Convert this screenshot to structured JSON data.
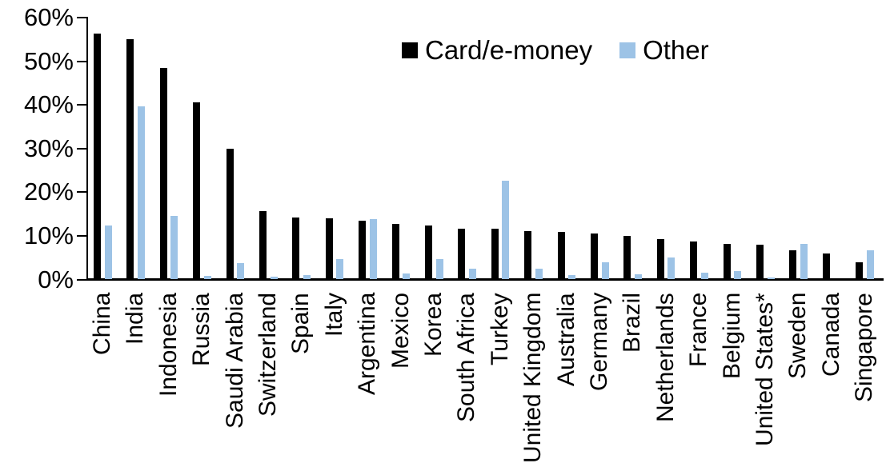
{
  "chart_data": {
    "type": "bar",
    "title": "",
    "xlabel": "",
    "ylabel": "",
    "ylim": [
      0,
      60
    ],
    "grid": false,
    "legend_position": "top-center",
    "background_color": "#ffffff",
    "axis_color": "#000000",
    "y_ticks": [
      {
        "value": 0,
        "label": "0%"
      },
      {
        "value": 10,
        "label": "10%"
      },
      {
        "value": 20,
        "label": "20%"
      },
      {
        "value": 30,
        "label": "30%"
      },
      {
        "value": 40,
        "label": "40%"
      },
      {
        "value": 50,
        "label": "50%"
      },
      {
        "value": 60,
        "label": "60%"
      }
    ],
    "categories": [
      "China",
      "India",
      "Indonesia",
      "Russia",
      "Saudi Arabia",
      "Switzerland",
      "Spain",
      "Italy",
      "Argentina",
      "Mexico",
      "Korea",
      "South Africa",
      "Turkey",
      "United Kingdom",
      "Australia",
      "Germany",
      "Brazil",
      "Netherlands",
      "France",
      "Belgium",
      "United States*",
      "Sweden",
      "Canada",
      "Singapore"
    ],
    "series": [
      {
        "name": "Card/e-money",
        "color": "#000000",
        "values": [
          56.3,
          55.1,
          48.4,
          40.6,
          29.9,
          15.6,
          14.2,
          14.0,
          13.4,
          12.8,
          12.3,
          11.7,
          11.6,
          11.1,
          10.9,
          10.6,
          10.0,
          9.2,
          8.7,
          8.2,
          7.9,
          6.6,
          5.9,
          3.9
        ]
      },
      {
        "name": "Other",
        "color": "#9DC3E6",
        "values": [
          12.3,
          39.7,
          14.6,
          0.9,
          3.8,
          0.7,
          1.0,
          4.6,
          13.9,
          1.4,
          4.6,
          2.4,
          22.7,
          2.4,
          1.0,
          4.0,
          1.2,
          5.0,
          1.6,
          2.0,
          0.4,
          8.2,
          0.0,
          6.7
        ]
      }
    ]
  }
}
